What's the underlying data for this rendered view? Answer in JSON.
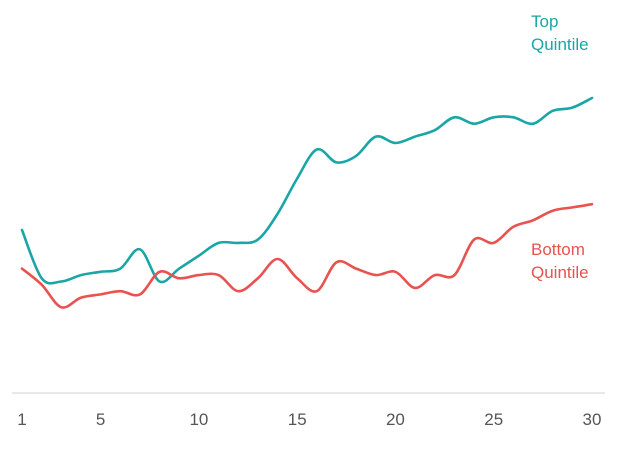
{
  "chart_data": {
    "type": "line",
    "x": [
      1,
      2,
      3,
      4,
      5,
      6,
      7,
      8,
      9,
      10,
      11,
      12,
      13,
      14,
      15,
      16,
      17,
      18,
      19,
      20,
      21,
      22,
      23,
      24,
      25,
      26,
      27,
      28,
      29,
      30
    ],
    "xticks": [
      1,
      5,
      10,
      15,
      20,
      25,
      30
    ],
    "xlim": [
      1,
      30
    ],
    "ylim": [
      0,
      100
    ],
    "grid": false,
    "series": [
      {
        "name_lines": [
          "Top",
          "Quintile"
        ],
        "color": "#1aa6a6",
        "values": [
          41,
          26,
          25,
          27,
          28,
          29,
          35,
          25,
          29,
          33,
          37,
          37,
          38,
          46,
          57,
          66,
          62,
          64,
          70,
          68,
          70,
          72,
          76,
          74,
          76,
          76,
          74,
          78,
          79,
          82
        ]
      },
      {
        "name_lines": [
          "Bottom",
          "Quintile"
        ],
        "color": "#e8524f",
        "values": [
          29,
          24,
          17,
          20,
          21,
          22,
          21,
          28,
          26,
          27,
          27,
          22,
          26,
          32,
          26,
          22,
          31,
          29,
          27,
          28,
          23,
          27,
          27,
          38,
          37,
          42,
          44,
          47,
          48,
          49
        ]
      }
    ]
  }
}
